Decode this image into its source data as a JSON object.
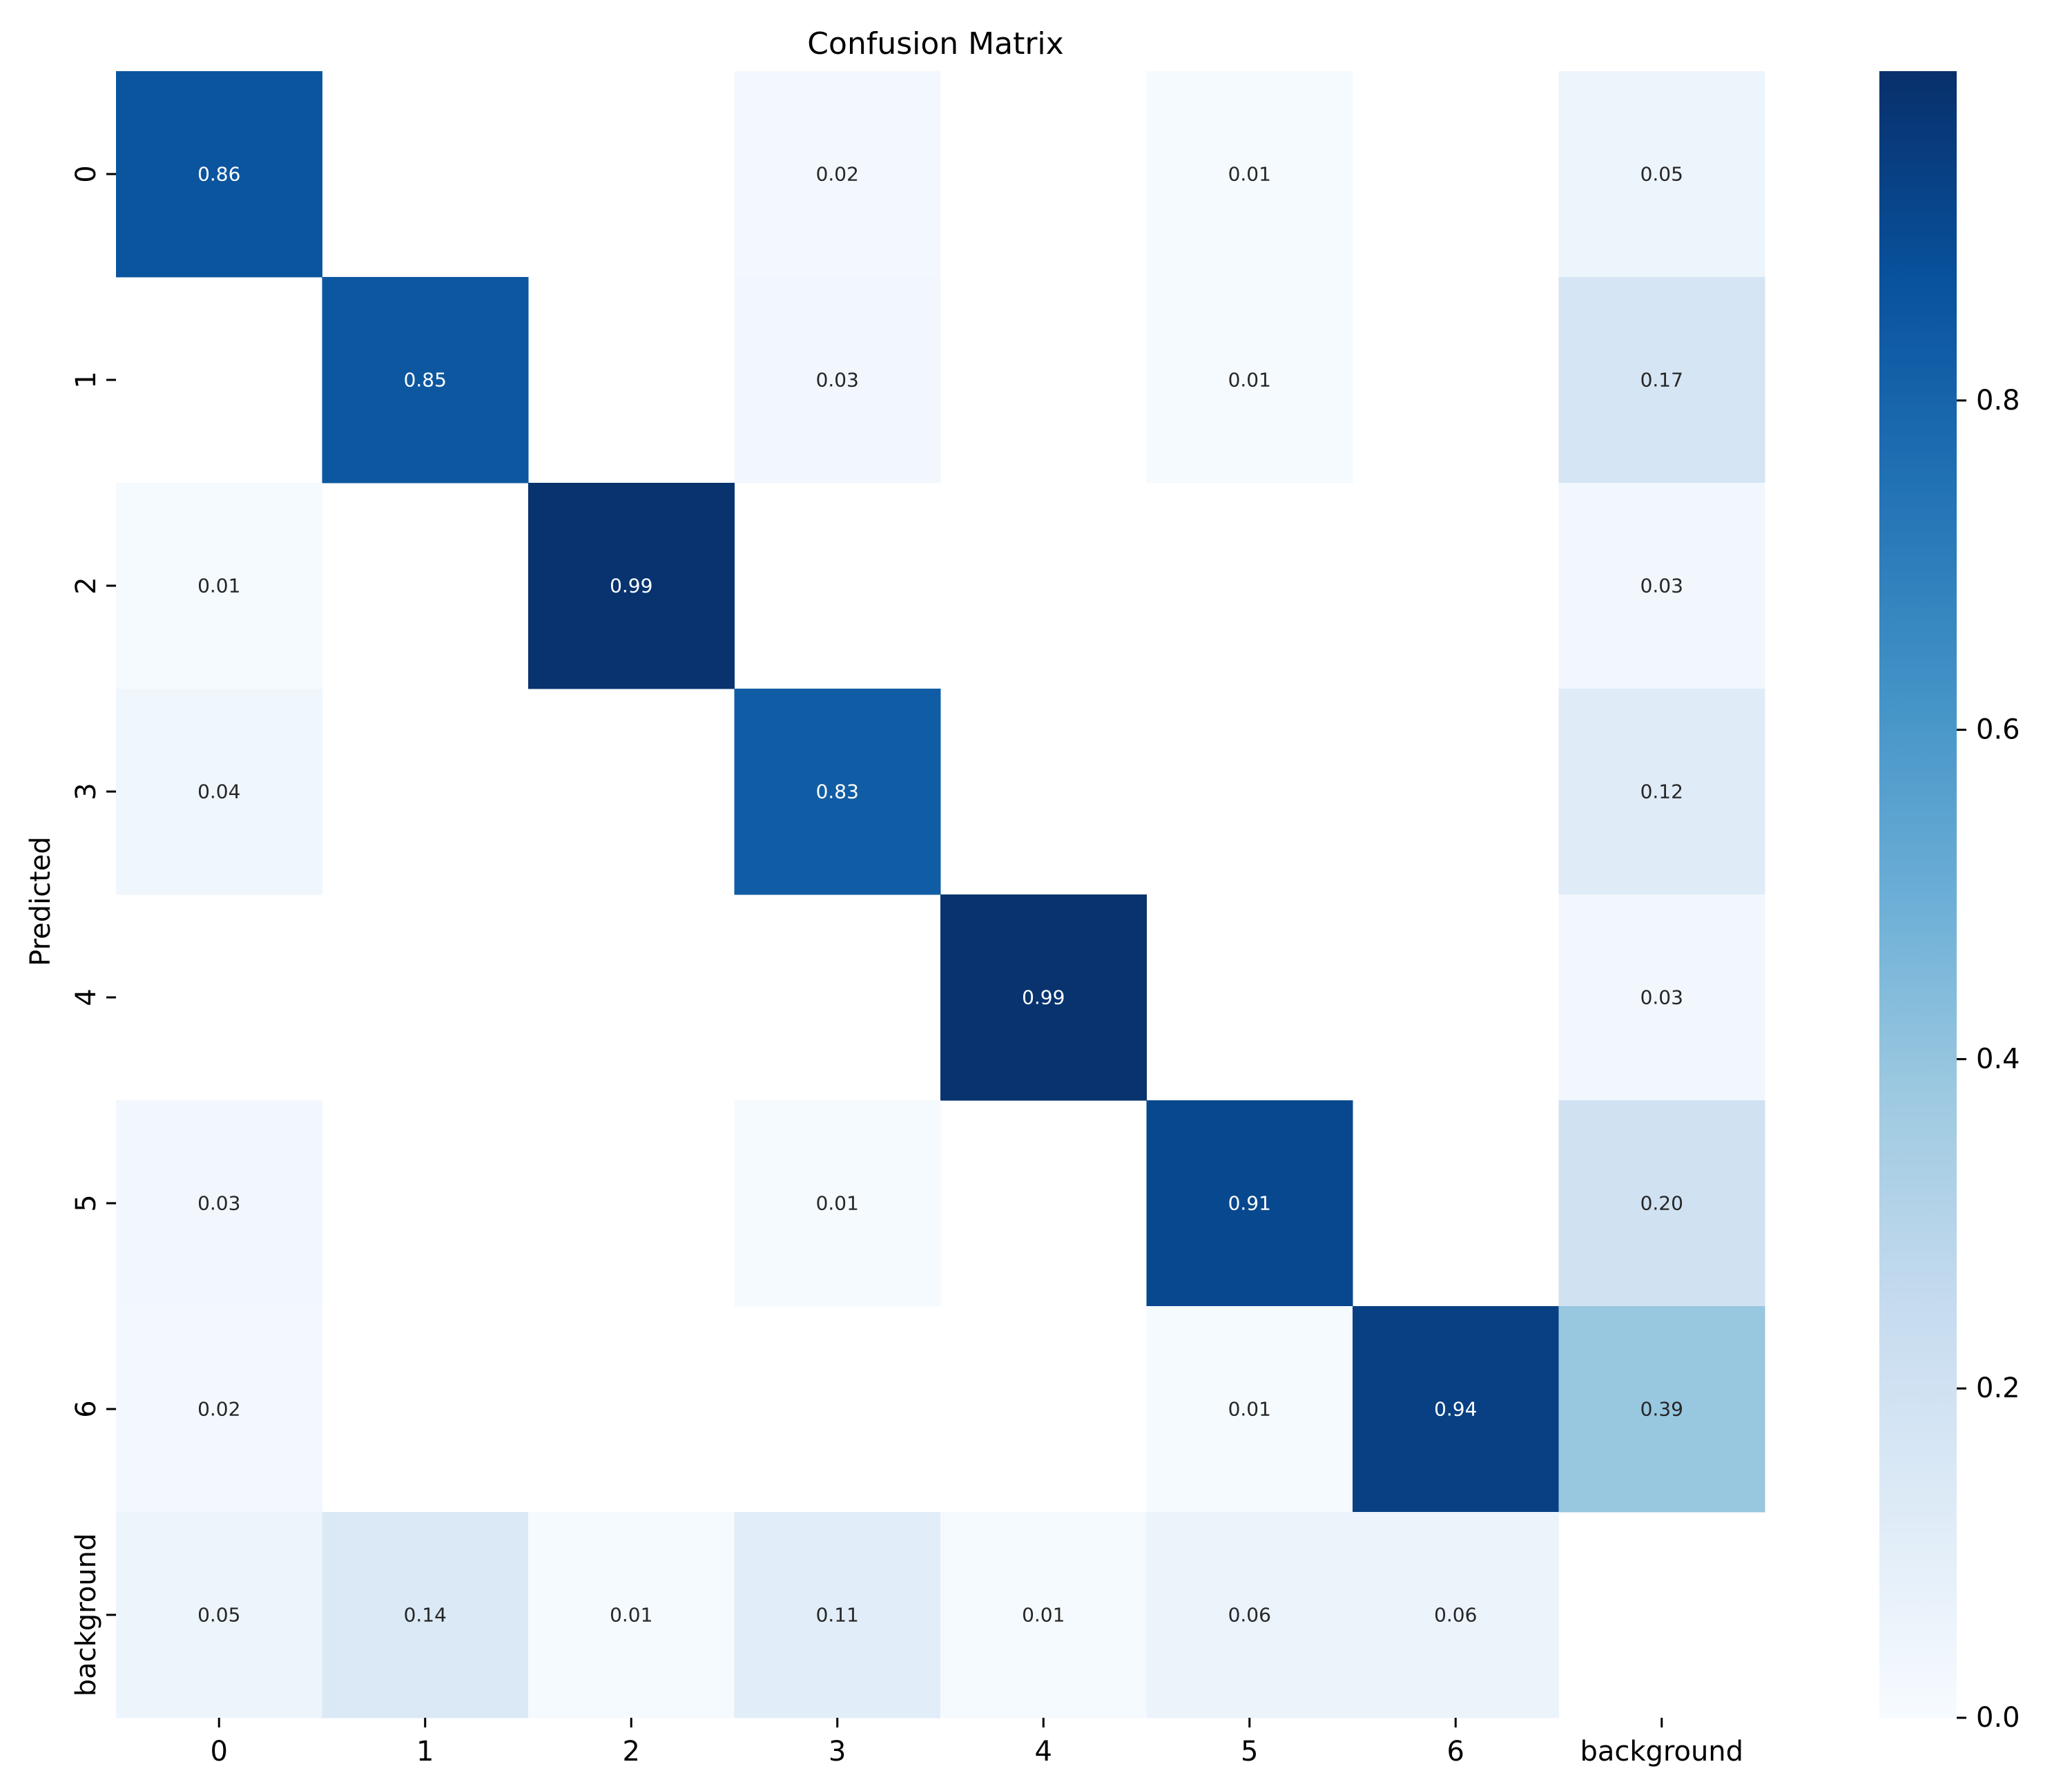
{
  "chart_data": {
    "type": "heatmap",
    "title": "Confusion Matrix",
    "xlabel": "",
    "ylabel": "Predicted",
    "categories": [
      "0",
      "1",
      "2",
      "3",
      "4",
      "5",
      "6",
      "background"
    ],
    "x_tick_labels": [
      "0",
      "1",
      "2",
      "3",
      "4",
      "5",
      "6",
      "background"
    ],
    "y_tick_labels": [
      "0",
      "1",
      "2",
      "3",
      "4",
      "5",
      "6",
      "background"
    ],
    "colormap": "Blues",
    "vmin": 0.0,
    "vmax": 1.0,
    "values": [
      [
        0.86,
        null,
        null,
        0.02,
        null,
        0.01,
        null,
        0.05
      ],
      [
        null,
        0.85,
        null,
        0.03,
        null,
        0.01,
        null,
        0.17
      ],
      [
        0.01,
        null,
        0.99,
        null,
        null,
        null,
        null,
        0.03
      ],
      [
        0.04,
        null,
        null,
        0.83,
        null,
        null,
        null,
        0.12
      ],
      [
        null,
        null,
        null,
        null,
        0.99,
        null,
        null,
        0.03
      ],
      [
        0.03,
        null,
        null,
        0.01,
        null,
        0.91,
        null,
        0.2
      ],
      [
        0.02,
        null,
        null,
        null,
        null,
        0.01,
        0.94,
        0.39
      ],
      [
        0.05,
        0.14,
        0.01,
        0.11,
        0.01,
        0.06,
        0.06,
        null
      ]
    ],
    "colorbar": {
      "ticks": [
        0.0,
        0.2,
        0.4,
        0.6,
        0.8
      ],
      "tick_labels": [
        "0.0",
        "0.2",
        "0.4",
        "0.6",
        "0.8"
      ]
    }
  }
}
